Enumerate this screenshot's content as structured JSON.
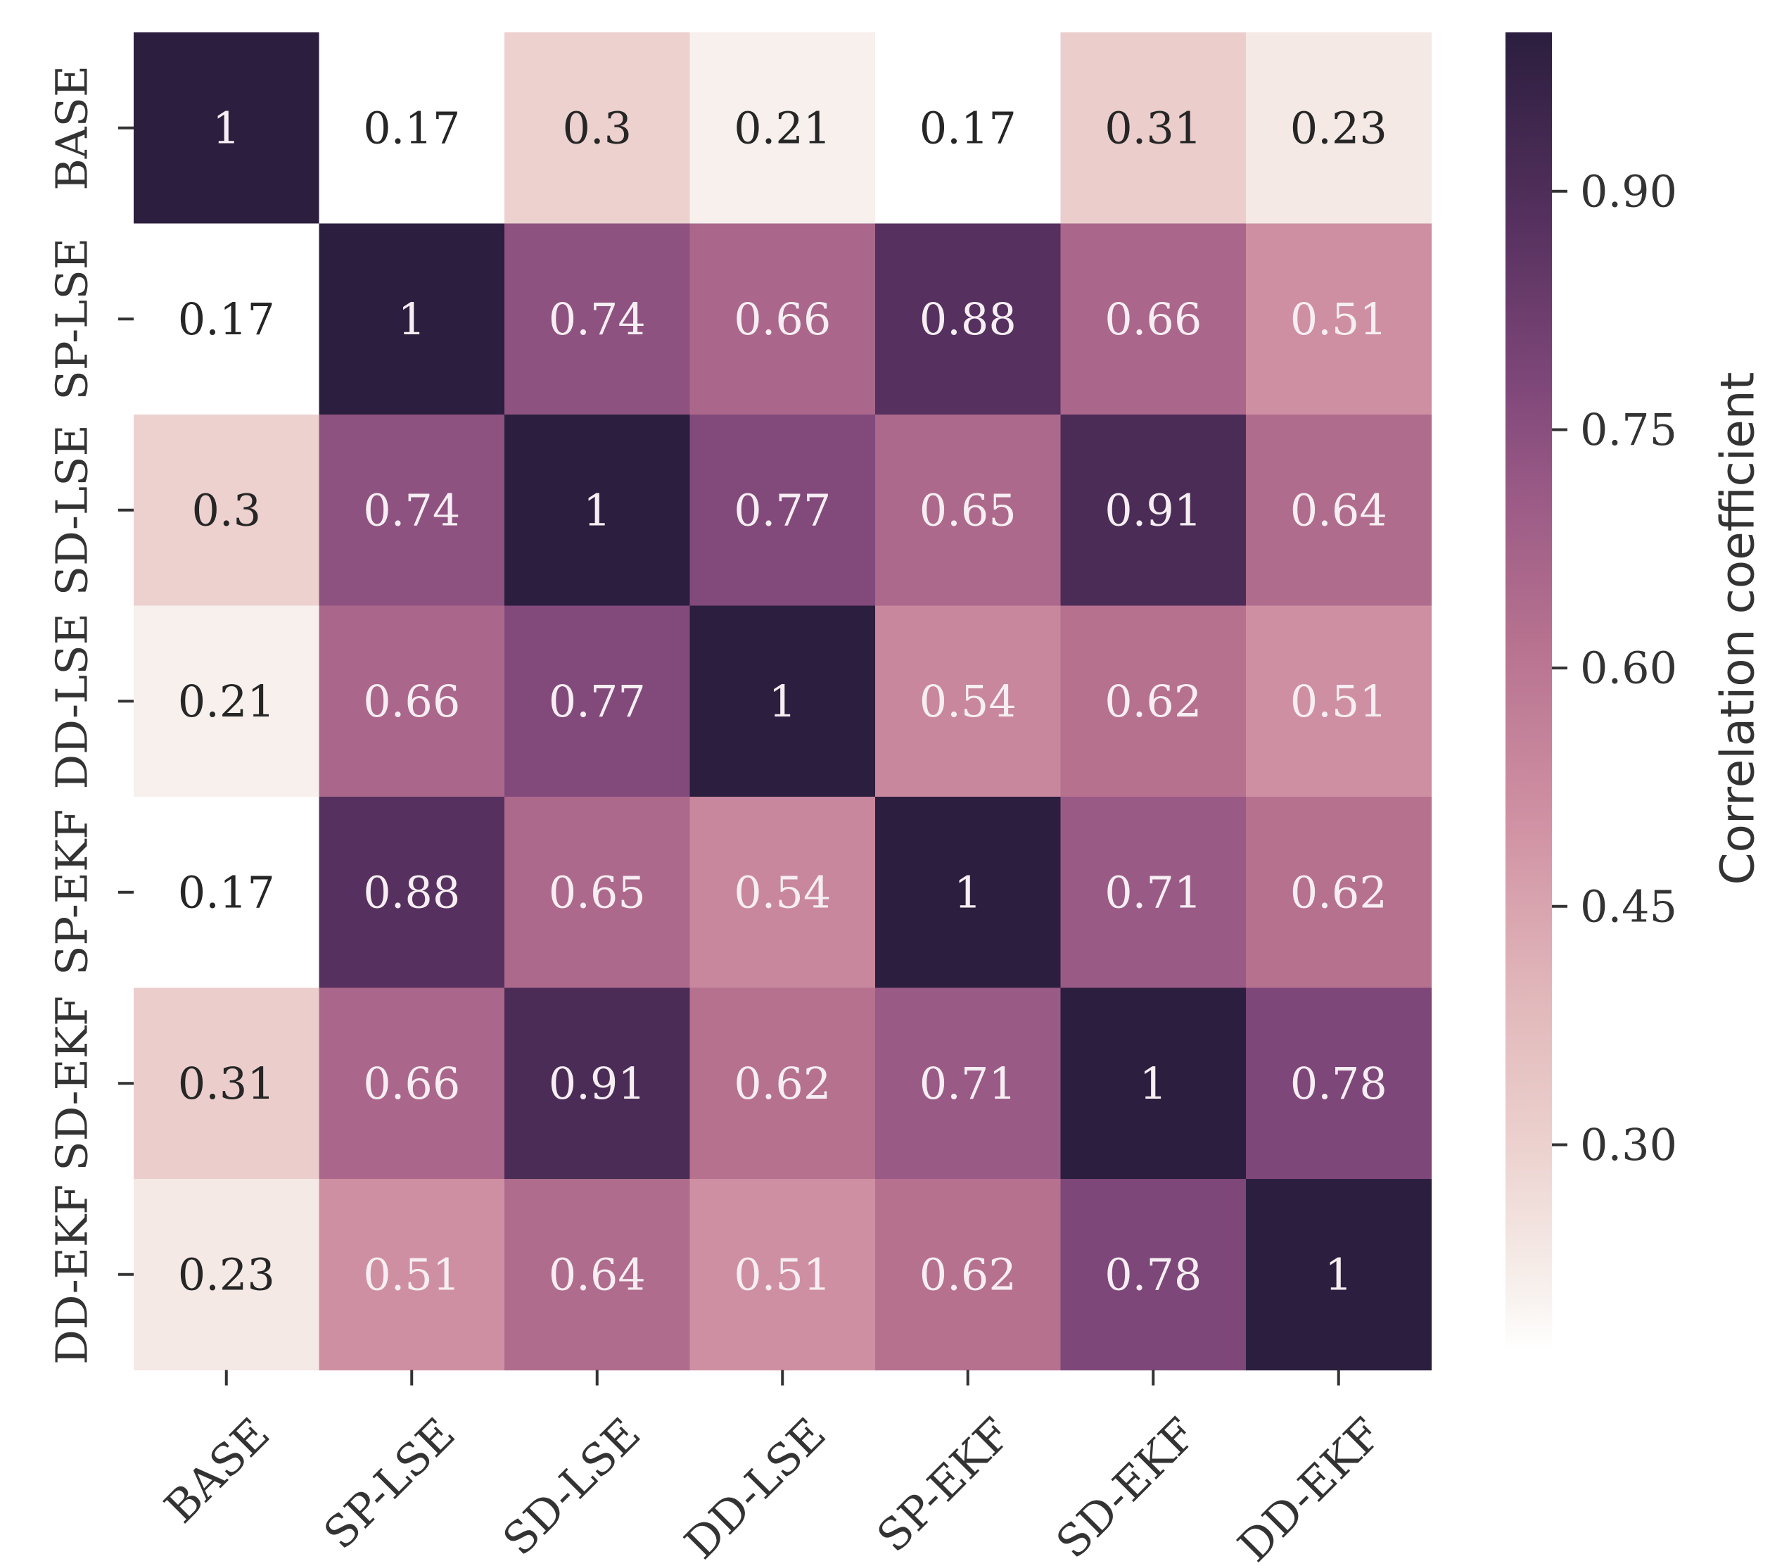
{
  "chart_data": {
    "type": "heatmap",
    "title": "",
    "xlabel": "",
    "ylabel": "",
    "x_categories": [
      "BASE",
      "SP-LSE",
      "SD-LSE",
      "DD-LSE",
      "SP-EKF",
      "SD-EKF",
      "DD-EKF"
    ],
    "y_categories": [
      "BASE",
      "SP-LSE",
      "SD-LSE",
      "DD-LSE",
      "SP-EKF",
      "SD-EKF",
      "DD-EKF"
    ],
    "values": [
      [
        1,
        0.17,
        0.3,
        0.21,
        0.17,
        0.31,
        0.23
      ],
      [
        0.17,
        1,
        0.74,
        0.66,
        0.88,
        0.66,
        0.51
      ],
      [
        0.3,
        0.74,
        1,
        0.77,
        0.65,
        0.91,
        0.64
      ],
      [
        0.21,
        0.66,
        0.77,
        1,
        0.54,
        0.62,
        0.51
      ],
      [
        0.17,
        0.88,
        0.65,
        0.54,
        1,
        0.71,
        0.62
      ],
      [
        0.31,
        0.66,
        0.91,
        0.62,
        0.71,
        1,
        0.78
      ],
      [
        0.23,
        0.51,
        0.64,
        0.51,
        0.62,
        0.78,
        1
      ]
    ],
    "annotations": true,
    "colorbar": {
      "label": "Correlation coefficient",
      "ticks": [
        0.9,
        0.75,
        0.6,
        0.45,
        0.3
      ],
      "tick_labels": [
        "0.90",
        "0.75",
        "0.60",
        "0.45",
        "0.30"
      ],
      "range": [
        0.17,
        1.0
      ]
    },
    "colormap": {
      "name": "cubehelix_light",
      "stops": [
        [
          0.17,
          "#ffffff"
        ],
        [
          0.21,
          "#f7f0ec"
        ],
        [
          0.3,
          "#ecd1ce"
        ],
        [
          0.4,
          "#e0b5b9"
        ],
        [
          0.51,
          "#cf8fa2"
        ],
        [
          0.62,
          "#b6718f"
        ],
        [
          0.71,
          "#9a5a86"
        ],
        [
          0.78,
          "#7e4779"
        ],
        [
          0.88,
          "#56315f"
        ],
        [
          1.0,
          "#2b1e3e"
        ]
      ],
      "light_text_color": "#f6eef2",
      "dark_text_color": "#262626",
      "text_threshold": 0.45
    }
  }
}
